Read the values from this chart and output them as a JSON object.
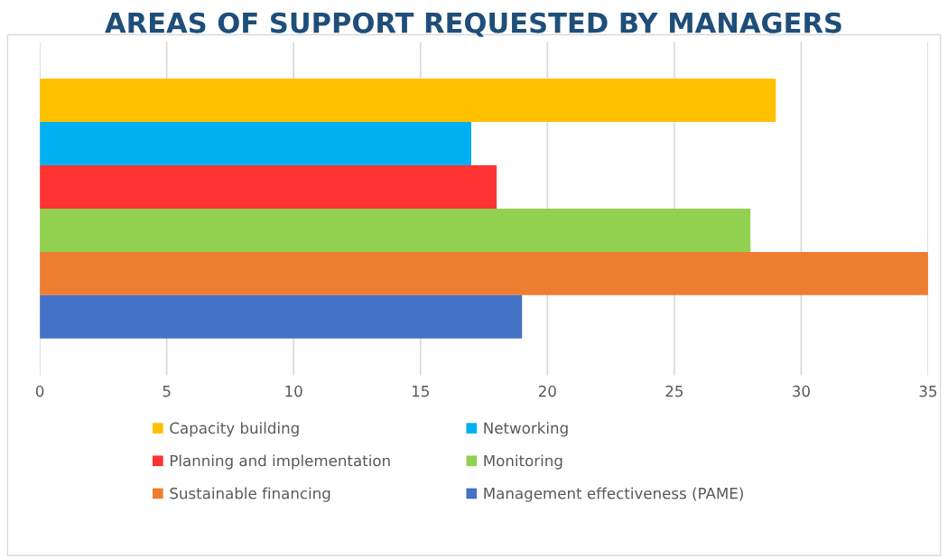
{
  "chart_data": {
    "type": "bar",
    "orientation": "horizontal",
    "title": "AREAS OF SUPPORT REQUESTED BY MANAGERS",
    "categories": [
      null
    ],
    "series": [
      {
        "name": "Capacity building",
        "color": "#ffc000",
        "values": [
          29
        ]
      },
      {
        "name": "Networking",
        "color": "#00b0f0",
        "values": [
          17
        ]
      },
      {
        "name": "Planning and implementation",
        "color": "#ff3333",
        "values": [
          18
        ]
      },
      {
        "name": "Monitoring",
        "color": "#92d050",
        "values": [
          28
        ]
      },
      {
        "name": "Sustainable financing",
        "color": "#ed7d31",
        "values": [
          35
        ]
      },
      {
        "name": "Management effectiveness (PAME)",
        "color": "#4472c4",
        "values": [
          19
        ]
      }
    ],
    "xlim": [
      0,
      35
    ],
    "xticks": [
      0,
      5,
      10,
      15,
      20,
      25,
      30,
      35
    ],
    "grid": "x",
    "legend": "bottom",
    "tick_labels": "x"
  }
}
